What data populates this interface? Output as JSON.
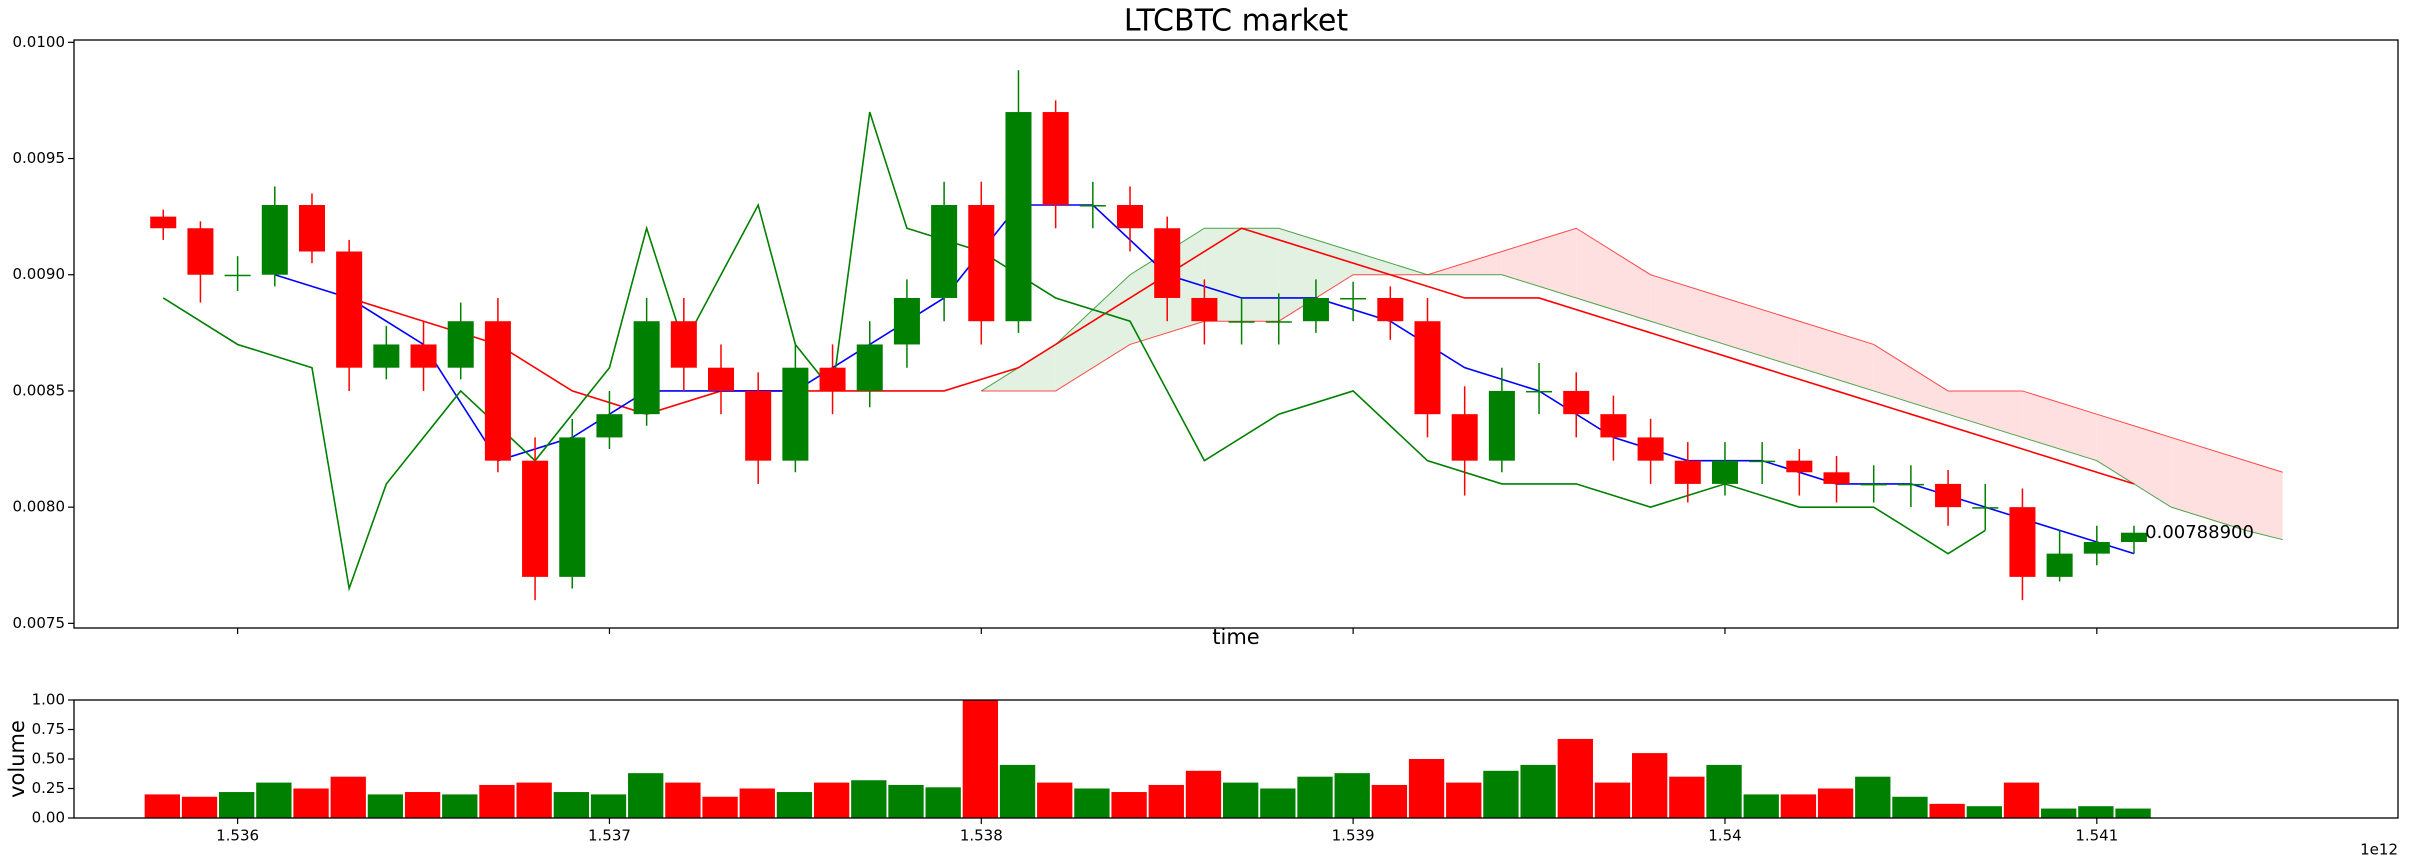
{
  "chart_data": {
    "type": "candlestick",
    "title": "LTCBTC market",
    "xlabel": "time",
    "volume_label": "volume",
    "x_offset_label": "1e12",
    "up_color": "#008000",
    "down_color": "#ff0000",
    "xlim": [
      1.53556,
      1.54181
    ],
    "xticks": [
      1.536,
      1.537,
      1.538,
      1.539,
      1.54,
      1.541
    ],
    "ylim": [
      0.00748,
      0.01001
    ],
    "yticks": [
      {
        "value": 0.0075,
        "label": "0.0075"
      },
      {
        "value": 0.008,
        "label": "0.0080"
      },
      {
        "value": 0.0085,
        "label": "0.0085"
      },
      {
        "value": 0.009,
        "label": "0.0090"
      },
      {
        "value": 0.0095,
        "label": "0.0095"
      },
      {
        "value": 0.01,
        "label": "0.0100"
      }
    ],
    "volume_ylim": [
      0,
      1
    ],
    "volume_yticks": [
      {
        "value": 0,
        "label": "0.00"
      },
      0.25,
      {
        "value": 0.5,
        "label": "0.50"
      },
      0.75,
      {
        "value": 1,
        "label": "1.00"
      }
    ],
    "x": [
      1.5358,
      1.5359,
      1.536,
      1.5361,
      1.5362,
      1.5363,
      1.5364,
      1.5365,
      1.5366,
      1.5367,
      1.5368,
      1.5369,
      1.537,
      1.5371,
      1.5372,
      1.5373,
      1.5374,
      1.5375,
      1.5376,
      1.5377,
      1.5378,
      1.5379,
      1.538,
      1.5381,
      1.5382,
      1.5383,
      1.5384,
      1.5385,
      1.5386,
      1.5387,
      1.5388,
      1.5389,
      1.539,
      1.5391,
      1.5392,
      1.5393,
      1.5394,
      1.5395,
      1.5396,
      1.5397,
      1.5398,
      1.5399,
      1.54,
      1.5401,
      1.5402,
      1.5403,
      1.5404,
      1.5405,
      1.5406,
      1.5407,
      1.5408,
      1.5409,
      1.541,
      1.5411
    ],
    "open": [
      0.00925,
      0.0092,
      0.009,
      0.009,
      0.0093,
      0.0091,
      0.0086,
      0.0087,
      0.0086,
      0.0088,
      0.0082,
      0.0077,
      0.0083,
      0.0084,
      0.0088,
      0.0086,
      0.0085,
      0.0082,
      0.0086,
      0.0085,
      0.0087,
      0.0089,
      0.0093,
      0.0088,
      0.0097,
      0.0093,
      0.0093,
      0.0092,
      0.0089,
      0.0088,
      0.0088,
      0.0088,
      0.0089,
      0.0089,
      0.0088,
      0.0084,
      0.0082,
      0.0085,
      0.0085,
      0.0084,
      0.0083,
      0.0082,
      0.0081,
      0.0082,
      0.0082,
      0.00815,
      0.0081,
      0.0081,
      0.0081,
      0.008,
      0.008,
      0.0077,
      0.0078,
      0.00785
    ],
    "high": [
      0.00928,
      0.00923,
      0.00908,
      0.00938,
      0.00935,
      0.00915,
      0.00878,
      0.0088,
      0.00888,
      0.0089,
      0.0083,
      0.00838,
      0.0085,
      0.0089,
      0.0089,
      0.0087,
      0.00858,
      0.0087,
      0.0087,
      0.0088,
      0.00898,
      0.0094,
      0.0094,
      0.00988,
      0.00975,
      0.0094,
      0.00938,
      0.00925,
      0.00898,
      0.0089,
      0.00892,
      0.00898,
      0.00897,
      0.00895,
      0.0089,
      0.00852,
      0.0086,
      0.00862,
      0.00858,
      0.00848,
      0.00838,
      0.00828,
      0.00828,
      0.00828,
      0.00825,
      0.00822,
      0.00818,
      0.00818,
      0.00816,
      0.0081,
      0.00808,
      0.0079,
      0.00792,
      0.00792
    ],
    "low": [
      0.00915,
      0.00888,
      0.00893,
      0.00895,
      0.00905,
      0.0085,
      0.00855,
      0.0085,
      0.00855,
      0.00815,
      0.0076,
      0.00765,
      0.00825,
      0.00835,
      0.0085,
      0.0084,
      0.0081,
      0.00815,
      0.0084,
      0.00843,
      0.0086,
      0.0088,
      0.0087,
      0.00875,
      0.0092,
      0.0092,
      0.0091,
      0.0088,
      0.0087,
      0.0087,
      0.0087,
      0.00875,
      0.0088,
      0.00872,
      0.0083,
      0.00805,
      0.00815,
      0.0084,
      0.0083,
      0.0082,
      0.0081,
      0.00802,
      0.00805,
      0.0081,
      0.00805,
      0.00802,
      0.00802,
      0.008,
      0.00792,
      0.0079,
      0.0076,
      0.00768,
      0.00775,
      0.0078
    ],
    "close": [
      0.0092,
      0.009,
      0.009,
      0.0093,
      0.0091,
      0.0086,
      0.0087,
      0.0086,
      0.0088,
      0.0082,
      0.0077,
      0.0083,
      0.0084,
      0.0088,
      0.0086,
      0.0085,
      0.0082,
      0.0086,
      0.0085,
      0.0087,
      0.0089,
      0.0093,
      0.0088,
      0.0097,
      0.0093,
      0.0093,
      0.0092,
      0.0089,
      0.0088,
      0.0088,
      0.0088,
      0.0089,
      0.0089,
      0.0088,
      0.0084,
      0.0082,
      0.0085,
      0.0085,
      0.0084,
      0.0083,
      0.0082,
      0.0081,
      0.0082,
      0.0082,
      0.00815,
      0.0081,
      0.0081,
      0.0081,
      0.008,
      0.008,
      0.0077,
      0.0078,
      0.00785,
      0.00789
    ],
    "volume": [
      0.2,
      0.18,
      0.22,
      0.3,
      0.25,
      0.35,
      0.2,
      0.22,
      0.2,
      0.28,
      0.3,
      0.22,
      0.2,
      0.38,
      0.3,
      0.18,
      0.25,
      0.22,
      0.3,
      0.32,
      0.28,
      0.26,
      1.0,
      0.45,
      0.3,
      0.25,
      0.22,
      0.28,
      0.4,
      0.3,
      0.25,
      0.35,
      0.38,
      0.28,
      0.5,
      0.3,
      0.4,
      0.45,
      0.67,
      0.3,
      0.55,
      0.35,
      0.45,
      0.2,
      0.2,
      0.25,
      0.35,
      0.18,
      0.12,
      0.1,
      0.3,
      0.08,
      0.1,
      0.08
    ],
    "cloud": {
      "x": [
        1.538,
        1.5382,
        1.5384,
        1.5386,
        1.5388,
        1.539,
        1.5392,
        1.5394,
        1.5396,
        1.5398,
        1.54,
        1.5402,
        1.5404,
        1.5406,
        1.5408,
        1.541,
        1.5412,
        1.5414,
        1.5415
      ],
      "span_a": [
        0.0085,
        0.0087,
        0.009,
        0.0092,
        0.0092,
        0.0091,
        0.009,
        0.009,
        0.0089,
        0.0088,
        0.0087,
        0.0086,
        0.0085,
        0.0084,
        0.0083,
        0.0082,
        0.008,
        0.0079,
        0.00786
      ],
      "span_b": [
        0.0085,
        0.0085,
        0.0087,
        0.0088,
        0.0088,
        0.009,
        0.009,
        0.0091,
        0.0092,
        0.009,
        0.0089,
        0.0088,
        0.0087,
        0.0085,
        0.0085,
        0.0084,
        0.0083,
        0.0082,
        0.00815
      ],
      "span_a_color": "#008000",
      "span_b_color": "#ff0000",
      "up_fill": "#e3f1e3",
      "down_fill": "#ffe0e0"
    },
    "lines": [
      {
        "color": "#ff0000",
        "x": [
          1.5363,
          1.5365,
          1.5367,
          1.5369,
          1.5371,
          1.5373,
          1.5375,
          1.5377,
          1.5379,
          1.5381,
          1.5383,
          1.5385,
          1.5387,
          1.5389,
          1.5391,
          1.5393,
          1.5395,
          1.5397,
          1.5399,
          1.5401,
          1.5403,
          1.5405,
          1.5407,
          1.5409,
          1.5411
        ],
        "values": [
          0.0089,
          0.0088,
          0.0087,
          0.0085,
          0.0084,
          0.0085,
          0.0085,
          0.0085,
          0.0085,
          0.0086,
          0.0088,
          0.009,
          0.0092,
          0.0091,
          0.009,
          0.0089,
          0.0089,
          0.0088,
          0.0087,
          0.0086,
          0.0085,
          0.0084,
          0.0083,
          0.0082,
          0.0081
        ]
      },
      {
        "color": "#0000ff",
        "x": [
          1.5361,
          1.5363,
          1.5365,
          1.5367,
          1.5369,
          1.5371,
          1.5373,
          1.5375,
          1.5377,
          1.5379,
          1.5381,
          1.5383,
          1.5385,
          1.5387,
          1.5389,
          1.5391,
          1.5393,
          1.5395,
          1.5397,
          1.5399,
          1.5401,
          1.5403,
          1.5405,
          1.5407,
          1.5409,
          1.5411
        ],
        "values": [
          0.009,
          0.0089,
          0.0087,
          0.0082,
          0.0083,
          0.0085,
          0.0085,
          0.0085,
          0.0087,
          0.0089,
          0.0093,
          0.0093,
          0.009,
          0.0089,
          0.0089,
          0.0088,
          0.0086,
          0.0085,
          0.0083,
          0.0082,
          0.0082,
          0.0081,
          0.0081,
          0.008,
          0.0079,
          0.0078
        ]
      },
      {
        "color": "#008000",
        "x": [
          1.5358,
          1.536,
          1.5362,
          1.5363,
          1.5364,
          1.5366,
          1.5368,
          1.537,
          1.5371,
          1.5372,
          1.5374,
          1.5375,
          1.5376,
          1.5377,
          1.5378,
          1.538,
          1.5382,
          1.5384,
          1.5386,
          1.5388,
          1.539,
          1.5392,
          1.5394,
          1.5396,
          1.5398,
          1.54,
          1.5402,
          1.5404,
          1.5406,
          1.5407
        ],
        "values": [
          0.0089,
          0.0087,
          0.0086,
          0.00765,
          0.0081,
          0.0085,
          0.0082,
          0.0086,
          0.0092,
          0.0087,
          0.0093,
          0.0087,
          0.0085,
          0.0097,
          0.0092,
          0.0091,
          0.0089,
          0.0088,
          0.0082,
          0.0084,
          0.0085,
          0.0082,
          0.0081,
          0.0081,
          0.008,
          0.0081,
          0.008,
          0.008,
          0.0078,
          0.0079
        ]
      }
    ],
    "last_price": {
      "value": 0.007889,
      "label": "0.00788900"
    }
  }
}
